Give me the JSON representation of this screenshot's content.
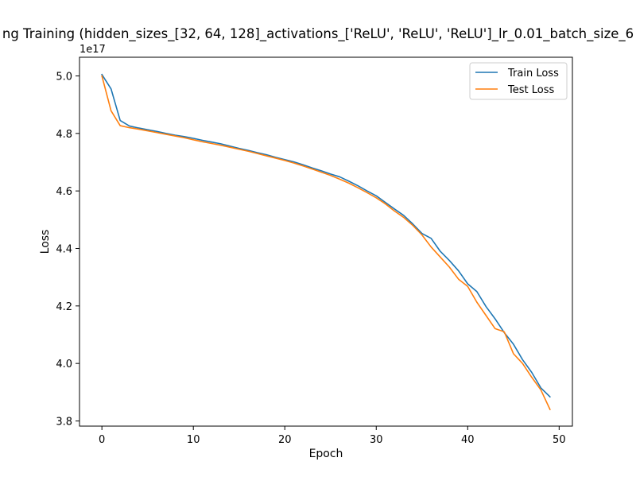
{
  "chart_data": {
    "type": "line",
    "title": "ng Training (hidden_sizes_[32, 64, 128]_activations_['ReLU', 'ReLU', 'ReLU']_lr_0.01_batch_size_6",
    "xlabel": "Epoch",
    "ylabel": "Loss",
    "offset_label": "1e17",
    "xlim": [
      -2.45,
      51.45
    ],
    "ylim": [
      3.782,
      5.065
    ],
    "x_ticks": [
      0,
      10,
      20,
      30,
      40,
      50
    ],
    "x_tick_labels": [
      "0",
      "10",
      "20",
      "30",
      "40",
      "50"
    ],
    "y_ticks": [
      3.8,
      4.0,
      4.2,
      4.4,
      4.6,
      4.8,
      5.0
    ],
    "y_tick_labels": [
      "3.8",
      "4.0",
      "4.2",
      "4.4",
      "4.6",
      "4.8",
      "5.0"
    ],
    "grid": false,
    "legend_position": "top-right",
    "x": [
      0,
      1,
      2,
      3,
      4,
      5,
      6,
      7,
      8,
      9,
      10,
      11,
      12,
      13,
      14,
      15,
      16,
      17,
      18,
      19,
      20,
      21,
      22,
      23,
      24,
      25,
      26,
      27,
      28,
      29,
      30,
      31,
      32,
      33,
      34,
      35,
      36,
      37,
      38,
      39,
      40,
      41,
      42,
      43,
      44,
      45,
      46,
      47,
      48,
      49
    ],
    "series": [
      {
        "name": "Train Loss",
        "color": "#1f77b4",
        "values": [
          5.005,
          4.955,
          4.845,
          4.826,
          4.819,
          4.813,
          4.807,
          4.8,
          4.794,
          4.789,
          4.783,
          4.776,
          4.77,
          4.764,
          4.756,
          4.748,
          4.741,
          4.733,
          4.726,
          4.717,
          4.709,
          4.701,
          4.691,
          4.68,
          4.67,
          4.659,
          4.649,
          4.634,
          4.618,
          4.6,
          4.583,
          4.56,
          4.537,
          4.515,
          4.485,
          4.452,
          4.435,
          4.39,
          4.358,
          4.322,
          4.277,
          4.25,
          4.198,
          4.155,
          4.107,
          4.067,
          4.013,
          3.969,
          3.915,
          3.884
        ]
      },
      {
        "name": "Test Loss",
        "color": "#ff7f0e",
        "values": [
          5.0,
          4.879,
          4.827,
          4.82,
          4.815,
          4.809,
          4.803,
          4.797,
          4.791,
          4.785,
          4.778,
          4.771,
          4.765,
          4.759,
          4.752,
          4.745,
          4.738,
          4.73,
          4.722,
          4.714,
          4.706,
          4.697,
          4.687,
          4.676,
          4.665,
          4.654,
          4.641,
          4.627,
          4.611,
          4.594,
          4.576,
          4.555,
          4.53,
          4.508,
          4.48,
          4.447,
          4.405,
          4.37,
          4.335,
          4.293,
          4.268,
          4.213,
          4.167,
          4.121,
          4.11,
          4.034,
          4.0,
          3.952,
          3.908,
          3.84
        ]
      }
    ]
  }
}
